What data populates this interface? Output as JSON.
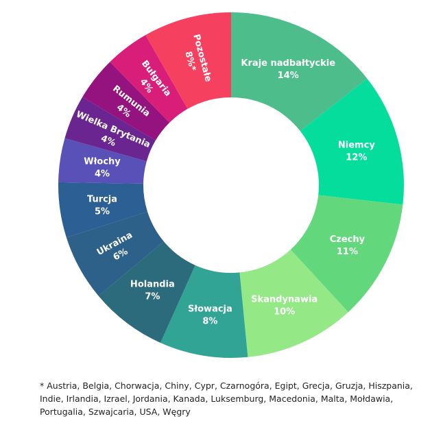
{
  "chart_data": {
    "type": "pie",
    "variant": "donut",
    "title": "",
    "slices": [
      {
        "label": "Kraje nadbałtyckie",
        "value": 14,
        "value_label": "14%",
        "color": "#4DBD8C"
      },
      {
        "label": "Niemcy",
        "value": 12,
        "value_label": "12%",
        "color": "#04DD9C"
      },
      {
        "label": "Czechy",
        "value": 11,
        "value_label": "11%",
        "color": "#63D77C"
      },
      {
        "label": "Skandynawia",
        "value": 10,
        "value_label": "10%",
        "color": "#94E886"
      },
      {
        "label": "Słowacja",
        "value": 8,
        "value_label": "8%",
        "color": "#31A495"
      },
      {
        "label": "Holandia",
        "value": 7,
        "value_label": "7%",
        "color": "#2C6B7B"
      },
      {
        "label": "Ukraina",
        "value": 6,
        "value_label": "6%",
        "color": "#2D6189"
      },
      {
        "label": "Turcja",
        "value": 5,
        "value_label": "5%",
        "color": "#2C5F94"
      },
      {
        "label": "Włochy",
        "value": 4,
        "value_label": "4%",
        "color": "#5950B8"
      },
      {
        "label": "Wielka Brytania",
        "value": 4,
        "value_label": "4%",
        "color": "#6A2591"
      },
      {
        "label": "Rumunia",
        "value": 4,
        "value_label": "4%",
        "color": "#94137E"
      },
      {
        "label": "Bułgaria",
        "value": 4,
        "value_label": "4%",
        "color": "#D81E79"
      },
      {
        "label": "Pozostałe",
        "value": 8,
        "value_label": "8%*",
        "color": "#F5415F"
      }
    ],
    "legend": "none"
  },
  "footnote": "* Austria, Belgia, Chorwacja, Chiny, Cypr, Czarnogóra, Egipt, Grecja, Gruzja, Hiszpania, Indie, Irlandia, Izrael, Jordania, Kanada, Luksemburg, Macedonia, Malta, Mołdawia, Portugalia, Szwajcaria, USA, Węgry"
}
